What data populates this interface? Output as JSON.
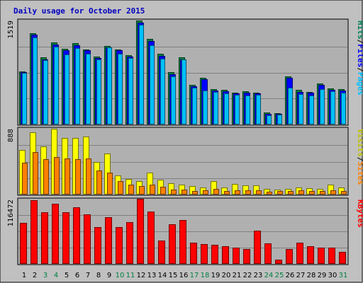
{
  "chart_data": {
    "type": "bar",
    "title": "Daily usage for October 2015",
    "categories": [
      "1",
      "2",
      "3",
      "4",
      "5",
      "6",
      "7",
      "8",
      "9",
      "10",
      "11",
      "12",
      "13",
      "14",
      "15",
      "16",
      "17",
      "18",
      "19",
      "20",
      "21",
      "22",
      "23",
      "24",
      "25",
      "26",
      "27",
      "28",
      "29",
      "30",
      "31"
    ],
    "weekend_days": [
      "3",
      "4",
      "10",
      "11",
      "17",
      "18",
      "24",
      "25",
      "31"
    ],
    "panels": [
      {
        "id": "top",
        "max_label": "1519",
        "ylim": [
          0,
          1519
        ],
        "side_label": [
          {
            "text": "Hits",
            "color": "#00805c"
          },
          {
            "text": "/",
            "color": "#000000"
          },
          {
            "text": "Files",
            "color": "#0000ff"
          },
          {
            "text": "/",
            "color": "#000000"
          },
          {
            "text": "Pages",
            "color": "#00c0ff"
          }
        ],
        "series": [
          {
            "name": "Hits",
            "color": "#008040",
            "values": [
              780,
              1330,
              980,
              1200,
              1110,
              1190,
              1100,
              990,
              1150,
              1100,
              1010,
              1519,
              1250,
              1030,
              760,
              980,
              580,
              680,
              520,
              505,
              470,
              490,
              470,
              175,
              170,
              700,
              505,
              480,
              600,
              530,
              520
            ]
          },
          {
            "name": "Files",
            "color": "#0000ff",
            "values": [
              760,
              1310,
              950,
              1170,
              1080,
              1160,
              1080,
              970,
              1130,
              1080,
              990,
              1490,
              1220,
              1000,
              730,
              950,
              560,
              660,
              500,
              485,
              450,
              470,
              450,
              160,
              155,
              680,
              480,
              460,
              580,
              510,
              500
            ]
          },
          {
            "name": "Pages",
            "color": "#00c0ff",
            "values": [
              750,
              1270,
              940,
              1140,
              1020,
              1120,
              1030,
              950,
              1130,
              1030,
              970,
              1460,
              1160,
              960,
              700,
              950,
              540,
              500,
              480,
              450,
              430,
              420,
              430,
              130,
              145,
              540,
              440,
              420,
              520,
              490,
              470
            ]
          }
        ]
      },
      {
        "id": "mid",
        "max_label": "888",
        "ylim": [
          0,
          888
        ],
        "side_label": [
          {
            "text": "Visits",
            "color": "#c0c000"
          },
          {
            "text": "/",
            "color": "#000000"
          },
          {
            "text": "Sites",
            "color": "#ff8000"
          }
        ],
        "series": [
          {
            "name": "Visits",
            "color": "#ffff00",
            "values": [
              600,
              838,
              654,
              888,
              767,
              767,
              786,
              442,
              550,
              255,
              213,
              184,
              294,
              203,
              150,
              137,
              110,
              96,
              182,
              91,
              147,
              123,
              126,
              81,
              71,
              79,
              96,
              87,
              77,
              134,
              96
            ]
          },
          {
            "name": "Sites",
            "color": "#ff8000",
            "values": [
              426,
              572,
              478,
              507,
              486,
              480,
              491,
              329,
              294,
              184,
              135,
              119,
              135,
              106,
              70,
              70,
              52,
              59,
              80,
              51,
              59,
              60,
              54,
              42,
              49,
              49,
              61,
              51,
              49,
              62,
              49
            ]
          }
        ]
      },
      {
        "id": "bot",
        "max_label": "116472",
        "ylim": [
          0,
          116472
        ],
        "side_label": [
          {
            "text": "KBytes",
            "color": "#ff0000"
          }
        ],
        "series": [
          {
            "name": "KBytes",
            "color": "#ff0000",
            "values": [
              73000,
              114000,
              93000,
              108000,
              93000,
              101000,
              89000,
              66000,
              83000,
              66000,
              75000,
              116472,
              94000,
              42000,
              71000,
              78000,
              38000,
              35000,
              34000,
              32000,
              29000,
              27000,
              59000,
              37000,
              8000,
              26000,
              38000,
              32000,
              29000,
              29000,
              21000
            ]
          }
        ]
      }
    ]
  }
}
